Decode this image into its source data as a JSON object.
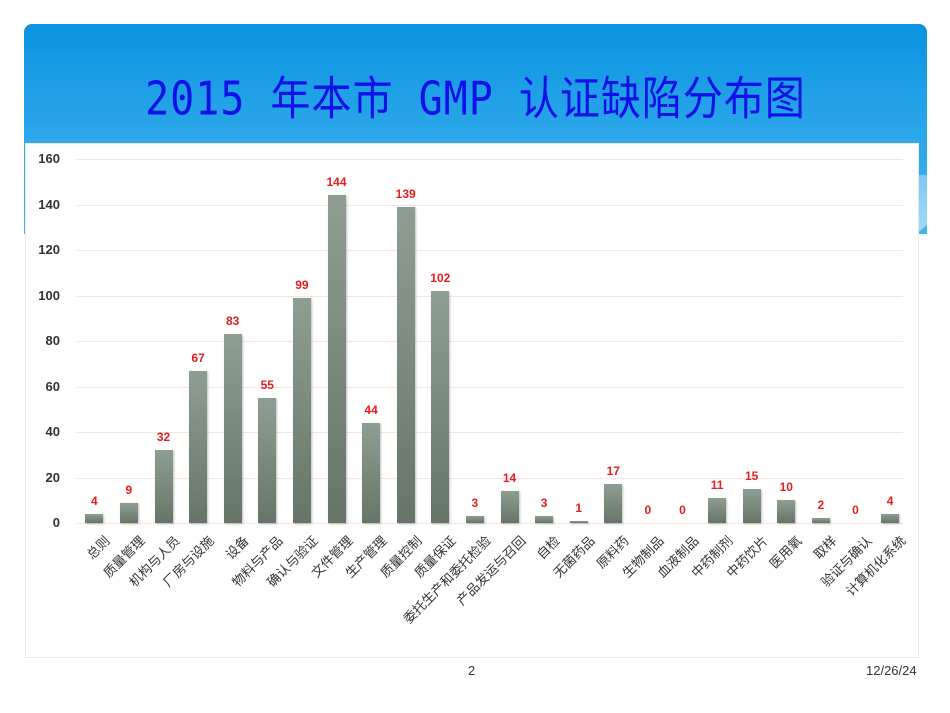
{
  "slide": {
    "title": "2015 年本市 GMP 认证缺陷分布图",
    "page_number": "2",
    "date": "12/26/24"
  },
  "chart_data": {
    "type": "bar",
    "title": "2015 年本市 GMP 认证缺陷分布图",
    "xlabel": "",
    "ylabel": "",
    "ylim": [
      0,
      160
    ],
    "yticks": [
      0,
      20,
      40,
      60,
      80,
      100,
      120,
      140,
      160
    ],
    "grid": true,
    "legend": "none",
    "bar_color": "#7a8b7e",
    "label_color": "#e81c1c",
    "categories": [
      "总则",
      "质量管理",
      "机构与人员",
      "厂房与设施",
      "设备",
      "物料与产品",
      "确认与验证",
      "文件管理",
      "生产管理",
      "质量控制",
      "质量保证",
      "委托生产和委托检验",
      "产品发运与召回",
      "自检",
      "无菌药品",
      "原料药",
      "生物制品",
      "血液制品",
      "中药制剂",
      "中药饮片",
      "医用氧",
      "取样",
      "验证与确认",
      "计算机化系统"
    ],
    "values": [
      4,
      9,
      32,
      67,
      83,
      55,
      99,
      144,
      44,
      139,
      102,
      3,
      14,
      3,
      1,
      17,
      0,
      0,
      11,
      15,
      10,
      2,
      0,
      4
    ]
  }
}
